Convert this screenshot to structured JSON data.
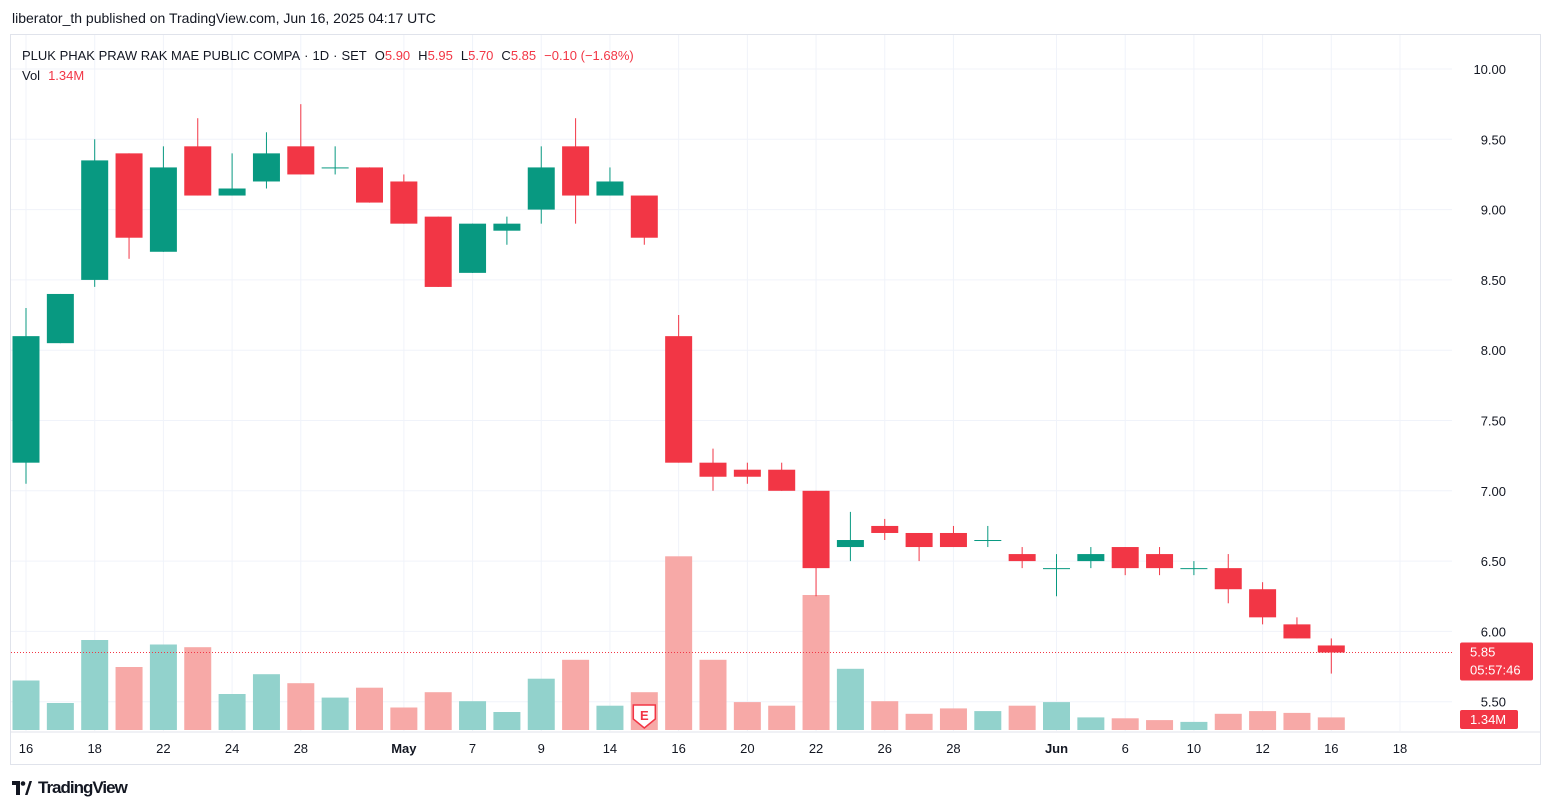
{
  "header": {
    "published_line": "liberator_th published on TradingView.com, Jun 16, 2025 04:17 UTC"
  },
  "legend": {
    "symbol": "PLUK PHAK PRAW RAK MAE PUBLIC COMPA",
    "interval": "1D",
    "exchange": "SET",
    "o_label": "O",
    "o_value": "5.90",
    "h_label": "H",
    "h_value": "5.95",
    "l_label": "L",
    "l_value": "5.70",
    "c_label": "C",
    "c_value": "5.85",
    "change": "−0.10 (−1.68%)",
    "vol_label": "Vol",
    "vol_value": "1.34M"
  },
  "footer": {
    "logo_text": "TradingView"
  },
  "colors": {
    "up": "#089981",
    "down": "#f23645",
    "vol_up": "#92d2cc",
    "vol_down": "#f7a9a7",
    "grid": "#f0f3fa"
  },
  "chart_data": {
    "type": "candlestick",
    "y_axis": {
      "ticks": [
        "10.00",
        "9.50",
        "9.00",
        "8.50",
        "8.00",
        "7.50",
        "7.00",
        "6.50",
        "6.00",
        "5.50"
      ],
      "range": [
        5.3,
        10.2
      ]
    },
    "x_ticks": [
      {
        "label": "16",
        "i": 0,
        "bold": false
      },
      {
        "label": "18",
        "i": 2,
        "bold": false
      },
      {
        "label": "22",
        "i": 4,
        "bold": false
      },
      {
        "label": "24",
        "i": 6,
        "bold": false
      },
      {
        "label": "28",
        "i": 8,
        "bold": false
      },
      {
        "label": "May",
        "i": 11,
        "bold": true
      },
      {
        "label": "7",
        "i": 13,
        "bold": false
      },
      {
        "label": "9",
        "i": 15,
        "bold": false
      },
      {
        "label": "14",
        "i": 17,
        "bold": false
      },
      {
        "label": "16",
        "i": 19,
        "bold": false
      },
      {
        "label": "20",
        "i": 21,
        "bold": false
      },
      {
        "label": "22",
        "i": 23,
        "bold": false
      },
      {
        "label": "26",
        "i": 25,
        "bold": false
      },
      {
        "label": "28",
        "i": 27,
        "bold": false
      },
      {
        "label": "Jun",
        "i": 30,
        "bold": true
      },
      {
        "label": "6",
        "i": 32,
        "bold": false
      },
      {
        "label": "10",
        "i": 34,
        "bold": false
      },
      {
        "label": "12",
        "i": 36,
        "bold": false
      },
      {
        "label": "16",
        "i": 38,
        "bold": false
      },
      {
        "label": "18",
        "i": 40,
        "bold": false
      }
    ],
    "candles": [
      {
        "o": 7.2,
        "h": 8.3,
        "l": 7.05,
        "c": 8.1,
        "v": 0.55
      },
      {
        "o": 8.05,
        "h": 8.4,
        "l": 8.05,
        "c": 8.4,
        "v": 0.3
      },
      {
        "o": 8.5,
        "h": 9.5,
        "l": 8.45,
        "c": 9.35,
        "v": 1.0
      },
      {
        "o": 9.4,
        "h": 9.4,
        "l": 8.65,
        "c": 8.8,
        "v": 0.7
      },
      {
        "o": 8.7,
        "h": 9.45,
        "l": 8.7,
        "c": 9.3,
        "v": 0.95
      },
      {
        "o": 9.45,
        "h": 9.65,
        "l": 9.1,
        "c": 9.1,
        "v": 0.92
      },
      {
        "o": 9.1,
        "h": 9.4,
        "l": 9.1,
        "c": 9.15,
        "v": 0.4
      },
      {
        "o": 9.2,
        "h": 9.55,
        "l": 9.15,
        "c": 9.4,
        "v": 0.62
      },
      {
        "o": 9.45,
        "h": 9.75,
        "l": 9.25,
        "c": 9.25,
        "v": 0.52
      },
      {
        "o": 9.3,
        "h": 9.45,
        "l": 9.25,
        "c": 9.3,
        "v": 0.36
      },
      {
        "o": 9.3,
        "h": 9.3,
        "l": 9.05,
        "c": 9.05,
        "v": 0.47
      },
      {
        "o": 9.2,
        "h": 9.25,
        "l": 8.9,
        "c": 8.9,
        "v": 0.25
      },
      {
        "o": 8.95,
        "h": 8.95,
        "l": 8.45,
        "c": 8.45,
        "v": 0.42
      },
      {
        "o": 8.55,
        "h": 8.9,
        "l": 8.55,
        "c": 8.9,
        "v": 0.32
      },
      {
        "o": 8.85,
        "h": 8.95,
        "l": 8.75,
        "c": 8.9,
        "v": 0.2
      },
      {
        "o": 9.0,
        "h": 9.45,
        "l": 8.9,
        "c": 9.3,
        "v": 0.57
      },
      {
        "o": 9.45,
        "h": 9.65,
        "l": 8.9,
        "c": 9.1,
        "v": 0.78
      },
      {
        "o": 9.1,
        "h": 9.3,
        "l": 9.1,
        "c": 9.2,
        "v": 0.27
      },
      {
        "o": 9.1,
        "h": 9.1,
        "l": 8.75,
        "c": 8.8,
        "v": 0.42
      },
      {
        "o": 8.1,
        "h": 8.25,
        "l": 7.2,
        "c": 7.2,
        "v": 1.93
      },
      {
        "o": 7.2,
        "h": 7.3,
        "l": 7.0,
        "c": 7.1,
        "v": 0.78
      },
      {
        "o": 7.15,
        "h": 7.2,
        "l": 7.05,
        "c": 7.1,
        "v": 0.31
      },
      {
        "o": 7.15,
        "h": 7.2,
        "l": 7.0,
        "c": 7.0,
        "v": 0.27
      },
      {
        "o": 7.0,
        "h": 7.0,
        "l": 6.25,
        "c": 6.45,
        "v": 1.5
      },
      {
        "o": 6.6,
        "h": 6.85,
        "l": 6.5,
        "c": 6.65,
        "v": 0.68
      },
      {
        "o": 6.75,
        "h": 6.8,
        "l": 6.65,
        "c": 6.7,
        "v": 0.32
      },
      {
        "o": 6.7,
        "h": 6.7,
        "l": 6.5,
        "c": 6.6,
        "v": 0.18
      },
      {
        "o": 6.7,
        "h": 6.75,
        "l": 6.6,
        "c": 6.6,
        "v": 0.24
      },
      {
        "o": 6.65,
        "h": 6.75,
        "l": 6.6,
        "c": 6.65,
        "v": 0.21
      },
      {
        "o": 6.55,
        "h": 6.6,
        "l": 6.45,
        "c": 6.5,
        "v": 0.27
      },
      {
        "o": 6.45,
        "h": 6.55,
        "l": 6.25,
        "c": 6.45,
        "v": 0.31
      },
      {
        "o": 6.5,
        "h": 6.6,
        "l": 6.45,
        "c": 6.55,
        "v": 0.14
      },
      {
        "o": 6.6,
        "h": 6.6,
        "l": 6.4,
        "c": 6.45,
        "v": 0.13
      },
      {
        "o": 6.55,
        "h": 6.6,
        "l": 6.4,
        "c": 6.45,
        "v": 0.11
      },
      {
        "o": 6.45,
        "h": 6.5,
        "l": 6.4,
        "c": 6.45,
        "v": 0.09
      },
      {
        "o": 6.45,
        "h": 6.55,
        "l": 6.2,
        "c": 6.3,
        "v": 0.18
      },
      {
        "o": 6.3,
        "h": 6.35,
        "l": 6.05,
        "c": 6.1,
        "v": 0.21
      },
      {
        "o": 6.05,
        "h": 6.1,
        "l": 5.95,
        "c": 5.95,
        "v": 0.19
      },
      {
        "o": 5.9,
        "h": 5.95,
        "l": 5.7,
        "c": 5.85,
        "v": 0.14
      }
    ],
    "earnings_index": 18,
    "earnings_label": "E",
    "last_price": {
      "value": 5.85,
      "label": "5.85",
      "countdown": "05:57:46"
    },
    "last_volume_label": "1.34M"
  }
}
